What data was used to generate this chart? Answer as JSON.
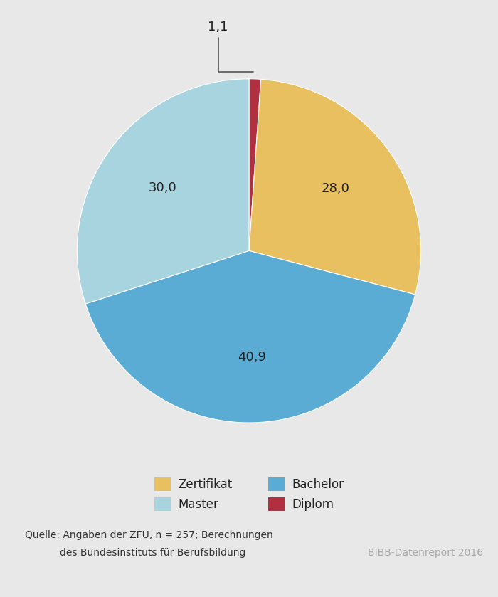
{
  "values": [
    1.1,
    28.0,
    40.9,
    30.0
  ],
  "colors": [
    "#B03040",
    "#E8C060",
    "#5BACD4",
    "#A8D4E0"
  ],
  "wedge_labels": [
    "",
    "28,0",
    "40,9",
    "30,0"
  ],
  "background_color": "#E8E8E8",
  "source_text_line1": "Quelle: Angaben der ZFU, n = 257; Berechnungen",
  "source_text_line2": "des Bundesinstituts für Berufsbildung",
  "bibb_text": "BIBB-Datenreport 2016",
  "legend_items": [
    {
      "label": "Zertifikat",
      "color": "#E8C060"
    },
    {
      "label": "Master",
      "color": "#A8D4E0"
    },
    {
      "label": "Bachelor",
      "color": "#5BACD4"
    },
    {
      "label": "Diplom",
      "color": "#B03040"
    }
  ]
}
